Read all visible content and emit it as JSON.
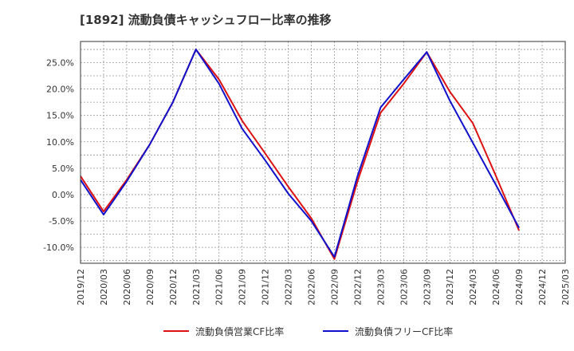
{
  "chart_data": {
    "type": "line",
    "title": "[1892]  流動負債キャッシュフロー比率の推移",
    "xlabel": "",
    "ylabel": "",
    "categories": [
      "2019/12",
      "2020/03",
      "2020/06",
      "2020/09",
      "2020/12",
      "2021/03",
      "2021/06",
      "2021/09",
      "2021/12",
      "2022/03",
      "2022/06",
      "2022/09",
      "2022/12",
      "2023/03",
      "2023/06",
      "2023/09",
      "2023/12",
      "2024/03",
      "2024/06",
      "2024/09",
      "2024/12",
      "2025/03"
    ],
    "yticks": [
      "25.0%",
      "20.0%",
      "15.0%",
      "10.0%",
      "5.0%",
      "0.0%",
      "-5.0%",
      "-10.0%"
    ],
    "ylim": [
      -13,
      29
    ],
    "grid": true,
    "legend_position": "bottom",
    "series": [
      {
        "name": "流動負債営業CF比率",
        "color": "#dd1111",
        "values": [
          3.5,
          -3.2,
          2.8,
          9.5,
          17.5,
          27.5,
          21.8,
          14.0,
          7.8,
          1.5,
          -4.5,
          -12.2,
          2.5,
          15.5,
          21.0,
          27.0,
          19.5,
          13.5,
          3.5,
          -6.8,
          null,
          null
        ]
      },
      {
        "name": "流動負債フリーCF比率",
        "color": "#1111cc",
        "values": [
          2.8,
          -3.8,
          2.5,
          9.5,
          17.5,
          27.5,
          21.0,
          12.5,
          6.5,
          0.2,
          -5.0,
          -11.8,
          3.5,
          16.5,
          21.8,
          27.0,
          17.8,
          9.8,
          1.8,
          -6.3,
          null,
          null
        ]
      }
    ]
  }
}
